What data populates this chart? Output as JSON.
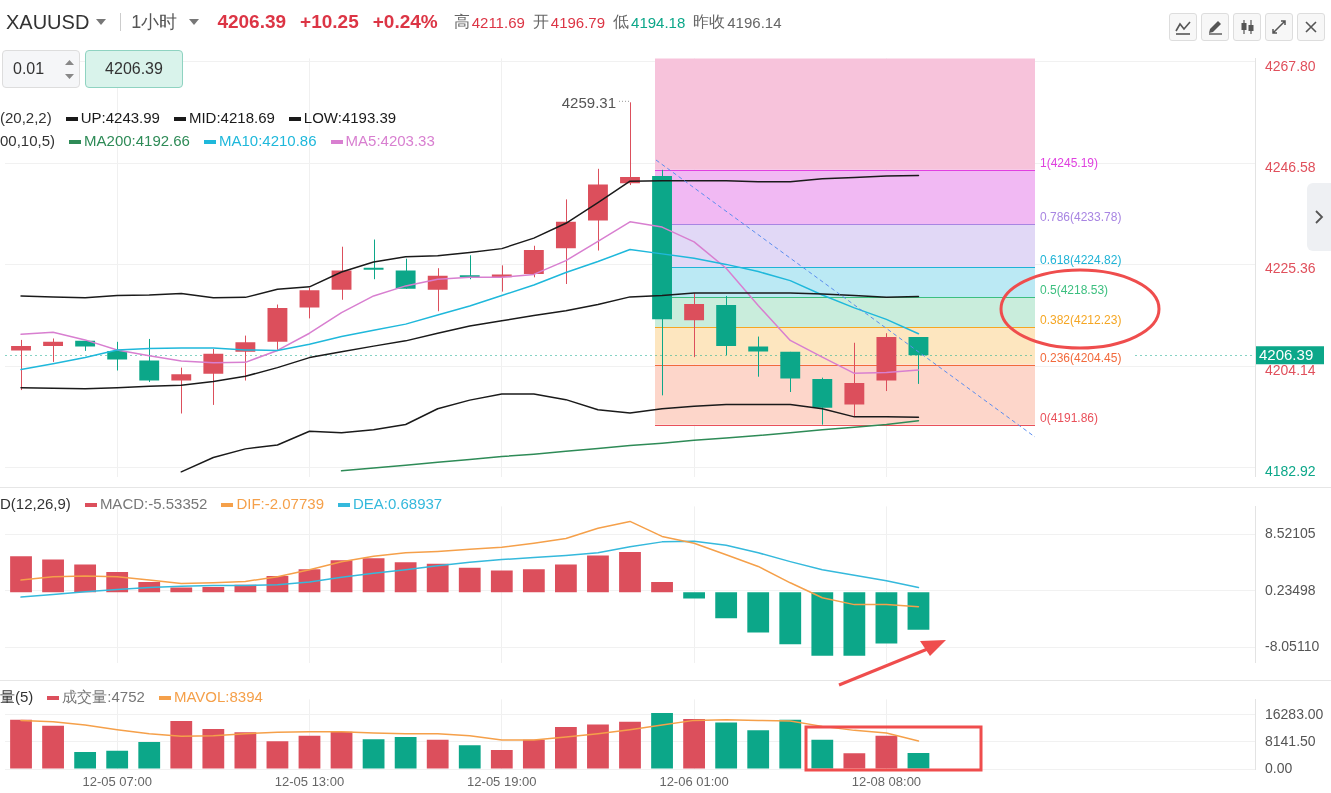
{
  "chart_data": [
    {
      "type": "candlestick",
      "title": "XAUUSD",
      "subtitle": "1小时",
      "categories": [
        null,
        null,
        null,
        null,
        null,
        null,
        null,
        null,
        null,
        null,
        null,
        null,
        null,
        null,
        null,
        null,
        null,
        null,
        null,
        null,
        null,
        null,
        null,
        null,
        null,
        null,
        null,
        null,
        null,
        null,
        null,
        null,
        null,
        null,
        null,
        null,
        null,
        null,
        null
      ],
      "ohlc": [
        [
          4207.4,
          4209.6,
          4199.1,
          4208.3
        ],
        [
          4208.3,
          4209.9,
          4205.0,
          4209.2
        ],
        [
          4209.4,
          4209.4,
          4207.3,
          4208.2
        ],
        [
          4207.3,
          4209.2,
          4203.2,
          4205.5
        ],
        [
          4205.3,
          4209.8,
          4200.8,
          4201.1
        ],
        [
          4201.1,
          4203.8,
          4194.2,
          4202.4
        ],
        [
          4202.5,
          4207.7,
          4196.0,
          4206.7
        ],
        [
          4207.1,
          4210.5,
          4201.1,
          4209.1
        ],
        [
          4209.2,
          4217.0,
          4207.5,
          4216.3
        ],
        [
          4216.4,
          4220.5,
          4214.1,
          4220.0
        ],
        [
          4220.1,
          4229.1,
          4218.0,
          4224.1
        ],
        [
          4224.5,
          4230.6,
          4222.3,
          4224.3
        ],
        [
          4224.1,
          4226.6,
          4220.3,
          4220.3
        ],
        [
          4220.1,
          4224.6,
          4215.6,
          4223.0
        ],
        [
          4223.0,
          4227.3,
          4222.3,
          4222.7
        ],
        [
          4222.7,
          4225.2,
          4219.7,
          4223.3
        ],
        [
          4223.4,
          4229.3,
          4222.7,
          4228.4
        ],
        [
          4228.8,
          4239.0,
          4221.3,
          4234.3
        ],
        [
          4234.6,
          4245.4,
          4228.3,
          4242.1
        ],
        [
          4242.4,
          4259.31,
          4242.0,
          4243.7
        ],
        [
          4243.9,
          4245.19,
          4198.0,
          4213.9
        ],
        [
          4213.7,
          4219.4,
          4206.0,
          4217.1
        ],
        [
          4216.9,
          4218.8,
          4206.4,
          4208.3
        ],
        [
          4208.2,
          4210.3,
          4201.9,
          4207.2
        ],
        [
          4207.1,
          4207.1,
          4198.7,
          4201.5
        ],
        [
          4201.4,
          4201.7,
          4191.86,
          4195.4
        ],
        [
          4196.1,
          4209.0,
          4193.5,
          4200.6
        ],
        [
          4201.1,
          4211.0,
          4198.9,
          4210.2
        ],
        [
          4210.2,
          4210.2,
          4200.4,
          4206.39
        ],
        null,
        null,
        null,
        null,
        null,
        null,
        null,
        null,
        null,
        null
      ],
      "colors": [
        "#dc4f5c",
        "#dc4f5c",
        "#0ca789",
        "#0ca789",
        "#0ca789",
        "#dc4f5c",
        "#dc4f5c",
        "#dc4f5c",
        "#dc4f5c",
        "#dc4f5c",
        "#dc4f5c",
        "#0ca789",
        "#0ca789",
        "#dc4f5c",
        "#0ca789",
        "#dc4f5c",
        "#dc4f5c",
        "#dc4f5c",
        "#dc4f5c",
        "#dc4f5c",
        "#0ca789",
        "#dc4f5c",
        "#0ca789",
        "#0ca789",
        "#0ca789",
        "#0ca789",
        "#dc4f5c",
        "#dc4f5c",
        "#0ca789",
        null,
        null,
        null,
        null,
        null,
        null,
        null,
        null,
        null,
        null
      ],
      "series": [
        {
          "name": "UP:4243.99",
          "type": "line",
          "color": "#1a1a1a",
          "values": [
            4218.8,
            4218.6,
            4218.4,
            4218.9,
            4219.0,
            4219.3,
            4218.4,
            4218.5,
            4220.2,
            4220.7,
            4223.8,
            4225.9,
            4227.0,
            4227.2,
            4227.9,
            4228.7,
            4230.9,
            4234.0,
            4238.3,
            4242.8,
            4242.9,
            4242.9,
            4242.9,
            4242.7,
            4242.7,
            4243.3,
            4243.6,
            4243.9,
            4244.0,
            null,
            null,
            null,
            null,
            null,
            null,
            null,
            null,
            null,
            null
          ]
        },
        {
          "name": "MID:4218.69",
          "type": "line",
          "color": "#1a1a1a",
          "values": [
            4199.6,
            4199.5,
            4199.4,
            4199.6,
            4199.9,
            4200.1,
            4200.9,
            4202.0,
            4203.8,
            4205.9,
            4207.1,
            4208.3,
            4209.4,
            4211.0,
            4212.5,
            4213.6,
            4214.7,
            4215.7,
            4217.0,
            4218.6,
            4218.9,
            4219.4,
            4219.4,
            4219.4,
            4219.4,
            4219.2,
            4218.9,
            4218.5,
            4218.7,
            null,
            null,
            null,
            null,
            null,
            null,
            null,
            null,
            null,
            null
          ]
        },
        {
          "name": "LOW:4193.39",
          "type": "line",
          "color": "#1a1a1a",
          "values": [
            null,
            null,
            null,
            null,
            null,
            4182.0,
            4185.0,
            4186.8,
            4187.6,
            4190.5,
            4190.2,
            4190.8,
            4191.9,
            4195.2,
            4197.0,
            4198.3,
            4198.3,
            4197.1,
            4195.0,
            4194.3,
            4195.2,
            4195.7,
            4196.1,
            4196.1,
            4196.1,
            4195.2,
            4193.5,
            4193.5,
            4193.4,
            null,
            null,
            null,
            null,
            null,
            null,
            null,
            null,
            null,
            null
          ]
        },
        {
          "name": "MA200:4192.66",
          "type": "line",
          "color": "#2e8b57",
          "values": [
            null,
            null,
            null,
            null,
            null,
            null,
            null,
            null,
            null,
            null,
            4182.2,
            4182.8,
            4183.4,
            4184.0,
            4184.6,
            4185.2,
            4185.7,
            4186.3,
            4186.9,
            4187.5,
            4188.0,
            4188.6,
            4189.1,
            4189.6,
            4190.2,
            4190.8,
            4191.3,
            4191.9,
            4192.7,
            null,
            null,
            null,
            null,
            null,
            null,
            null,
            null,
            null,
            null
          ]
        },
        {
          "name": "MA10:4210.86",
          "type": "line",
          "color": "#1fb8db",
          "values": [
            4203.4,
            4204.6,
            4205.9,
            4207.5,
            4207.8,
            4207.9,
            4207.9,
            4207.5,
            4207.4,
            4208.7,
            4210.3,
            4211.6,
            4212.9,
            4214.8,
            4216.7,
            4218.9,
            4221.1,
            4223.7,
            4226.0,
            4228.5,
            4227.6,
            4226.7,
            4225.4,
            4223.9,
            4222.0,
            4219.0,
            4216.3,
            4213.9,
            4210.9,
            null,
            null,
            null,
            null,
            null,
            null,
            null,
            null,
            null,
            null
          ]
        },
        {
          "name": "MA5:4203.33",
          "type": "line",
          "color": "#d87fd0",
          "values": [
            4210.8,
            4211.2,
            4209.6,
            4207.5,
            4206.3,
            4205.2,
            4204.8,
            4204.9,
            4207.4,
            4211.0,
            4215.3,
            4218.8,
            4220.9,
            4222.3,
            4222.7,
            4222.7,
            4223.3,
            4226.2,
            4230.2,
            4234.3,
            4233.2,
            4230.1,
            4224.6,
            4216.8,
            4209.5,
            4206.0,
            4202.6,
            4202.8,
            4203.3,
            null,
            null,
            null,
            null,
            null,
            null,
            null,
            null,
            null,
            null
          ]
        }
      ],
      "ylim": [
        4181,
        4268.5
      ],
      "yticks": [
        4182.92,
        4204.14,
        4225.36,
        4246.58,
        {
          "value": 4267.8,
          "label": "4267.80"
        }
      ],
      "bands": [
        {
          "axis": "y",
          "from": 4245.19,
          "to": 4268.5,
          "color": "#f7c3db"
        },
        {
          "axis": "y",
          "from": 4233.78,
          "to": 4245.19,
          "color": "#f1b9f3"
        },
        {
          "axis": "y",
          "from": 4224.82,
          "to": 4233.78,
          "color": "#e1d8f6"
        },
        {
          "axis": "y",
          "from": 4218.53,
          "to": 4224.82,
          "color": "#bbe9f4"
        },
        {
          "axis": "y",
          "from": 4212.23,
          "to": 4218.53,
          "color": "#c9eddc"
        },
        {
          "axis": "y",
          "from": 4204.45,
          "to": 4212.23,
          "color": "#fde6bf"
        },
        {
          "axis": "y",
          "from": 4191.86,
          "to": 4204.45,
          "color": "#fdd6ca"
        }
      ],
      "ref_lines": [
        {
          "axis": "y",
          "value": 4245.19,
          "label": "1(4245.19)",
          "color": "#e040e0"
        },
        {
          "axis": "y",
          "value": 4233.78,
          "label": "0.786(4233.78)",
          "color": "#a885e2"
        },
        {
          "axis": "y",
          "value": 4224.82,
          "label": "0.618(4224.82)",
          "color": "#1fb3d6"
        },
        {
          "axis": "y",
          "value": 4218.53,
          "label": "0.5(4218.53)",
          "color": "#3cbf7f"
        },
        {
          "axis": "y",
          "value": 4212.23,
          "label": "0.382(4212.23)",
          "color": "#f5a623"
        },
        {
          "axis": "y",
          "value": 4204.45,
          "label": "0.236(4204.45)",
          "color": "#f26a3c"
        },
        {
          "axis": "y",
          "value": 4191.86,
          "label": "0(4191.86)",
          "color": "#e9505a"
        },
        {
          "axis": "y",
          "value": 4206.39,
          "label": "4206.39",
          "color": "#0ca789",
          "line_style": "dotted"
        }
      ],
      "annotations": [
        "4206.39",
        "+10.25",
        "+0.24%",
        "高",
        "4211.69",
        "开",
        "4196.79",
        "低",
        "4194.18",
        "昨收",
        "4196.14",
        "0.01",
        "4206.39",
        "(20,2,2)",
        "00,10,5)",
        "4259.31"
      ],
      "grid": true,
      "legend": "top left",
      "marker": "none",
      "tick_labels": "y"
    },
    {
      "type": "bar",
      "categories": [
        null,
        null,
        null,
        null,
        null,
        null,
        null,
        null,
        null,
        null,
        null,
        null,
        null,
        null,
        null,
        null,
        null,
        null,
        null,
        null,
        null,
        null,
        null,
        null,
        null,
        null,
        null,
        null,
        null,
        null,
        null,
        null,
        null,
        null,
        null,
        null,
        null,
        null,
        null
      ],
      "series": [
        {
          "name": "MACD:-5.53352",
          "type": "bar",
          "colors": [
            "#dc4f5c",
            "#dc4f5c",
            "#dc4f5c",
            "#dc4f5c",
            "#dc4f5c",
            "#dc4f5c",
            "#dc4f5c",
            "#dc4f5c",
            "#dc4f5c",
            "#dc4f5c",
            "#dc4f5c",
            "#dc4f5c",
            "#dc4f5c",
            "#dc4f5c",
            "#dc4f5c",
            "#dc4f5c",
            "#dc4f5c",
            "#dc4f5c",
            "#dc4f5c",
            "#dc4f5c",
            "#dc4f5c",
            "#0ca789",
            "#0ca789",
            "#0ca789",
            "#0ca789",
            "#0ca789",
            "#0ca789",
            "#0ca789",
            "#0ca789",
            null,
            null,
            null,
            null,
            null,
            null,
            null,
            null,
            null,
            null
          ],
          "values": [
            5.3,
            4.8,
            4.1,
            3.0,
            1.5,
            0.7,
            0.8,
            1.1,
            2.4,
            3.4,
            4.7,
            5.0,
            4.4,
            4.2,
            3.6,
            3.2,
            3.4,
            4.1,
            5.4,
            5.9,
            1.5,
            -0.9,
            -3.8,
            -5.9,
            -7.6,
            -9.3,
            -9.3,
            -7.5,
            -5.5,
            null,
            null,
            null,
            null,
            null,
            null,
            null,
            null,
            null,
            null
          ]
        },
        {
          "name": "DIF:-2.07739",
          "type": "line",
          "color": "#f5a04a",
          "values": [
            1.8,
            2.3,
            2.4,
            2.3,
            1.8,
            1.3,
            1.4,
            1.6,
            2.3,
            3.3,
            4.5,
            5.3,
            5.8,
            6.0,
            6.3,
            6.6,
            7.2,
            7.9,
            9.4,
            10.4,
            8.2,
            7.2,
            5.5,
            3.8,
            1.4,
            -0.8,
            -1.8,
            -1.8,
            -2.1,
            null,
            null,
            null,
            null,
            null,
            null,
            null,
            null,
            null,
            null
          ]
        },
        {
          "name": "DEA:0.68937",
          "type": "line",
          "color": "#35b9dc",
          "values": [
            -0.7,
            -0.3,
            0.1,
            0.4,
            0.7,
            0.9,
            1.0,
            1.0,
            1.1,
            1.5,
            2.2,
            2.8,
            3.3,
            3.9,
            4.4,
            4.8,
            5.1,
            5.4,
            5.8,
            6.7,
            7.4,
            7.5,
            6.9,
            5.8,
            4.5,
            3.3,
            2.5,
            1.7,
            0.7,
            null,
            null,
            null,
            null,
            null,
            null,
            null,
            null,
            null,
            null
          ]
        }
      ],
      "ylim": [
        -10.3,
        12.6
      ],
      "yticks": [
        {
          "value": -8.0511,
          "label": "-8.05110"
        },
        0.23498,
        8.52105
      ],
      "annotations": [
        "D(12,26,9)"
      ],
      "grid": true,
      "legend": "top left",
      "marker": "none",
      "tick_labels": "y"
    },
    {
      "type": "bar",
      "categories": [
        null,
        null,
        null,
        "12-05 07:00",
        null,
        null,
        null,
        null,
        null,
        "12-05 13:00",
        null,
        null,
        null,
        null,
        null,
        "12-05 19:00",
        null,
        null,
        null,
        null,
        null,
        "12-06 01:00",
        null,
        null,
        null,
        null,
        null,
        "12-08 08:00",
        null,
        null,
        null,
        null,
        null,
        null,
        null,
        null,
        null,
        null,
        null
      ],
      "series": [
        {
          "name": "成交量:4752",
          "type": "bar",
          "colors": [
            "#dc4f5c",
            "#dc4f5c",
            "#0ca789",
            "#0ca789",
            "#0ca789",
            "#dc4f5c",
            "#dc4f5c",
            "#dc4f5c",
            "#dc4f5c",
            "#dc4f5c",
            "#dc4f5c",
            "#0ca789",
            "#0ca789",
            "#dc4f5c",
            "#0ca789",
            "#dc4f5c",
            "#dc4f5c",
            "#dc4f5c",
            "#dc4f5c",
            "#dc4f5c",
            "#0ca789",
            "#dc4f5c",
            "#0ca789",
            "#0ca789",
            "#0ca789",
            "#0ca789",
            "#dc4f5c",
            "#dc4f5c",
            "#0ca789",
            null,
            null,
            null,
            null,
            null,
            null,
            null,
            null,
            null,
            null
          ],
          "values": [
            14800,
            13000,
            5100,
            5500,
            8100,
            14400,
            12000,
            11000,
            8300,
            10000,
            11200,
            8900,
            9600,
            8800,
            7100,
            5700,
            8800,
            12600,
            13400,
            14200,
            16800,
            15000,
            14000,
            11600,
            14800,
            8800,
            4700,
            10000,
            4800,
            null,
            null,
            null,
            null,
            null,
            null,
            null,
            null,
            null,
            null
          ]
        },
        {
          "name": "MAVOL:8394",
          "type": "line",
          "color": "#f5a04a",
          "values": [
            14600,
            14200,
            13200,
            11800,
            10600,
            9800,
            10000,
            10600,
            11000,
            11200,
            11200,
            10800,
            10600,
            10600,
            10000,
            8700,
            8700,
            9600,
            10600,
            11800,
            13200,
            14600,
            14800,
            14600,
            14400,
            12800,
            11600,
            10800,
            8400,
            null,
            null,
            null,
            null,
            null,
            null,
            null,
            null,
            null,
            null
          ]
        }
      ],
      "ylim": [
        0,
        20900
      ],
      "yticks": [
        {
          "value": 0,
          "label": "0.00"
        },
        {
          "value": 8141.5,
          "label": "8141.50"
        },
        {
          "value": 16283,
          "label": "16283.00"
        }
      ],
      "annotations": [
        "量(5)"
      ],
      "grid": true,
      "legend": "top left",
      "marker": "none"
    }
  ]
}
